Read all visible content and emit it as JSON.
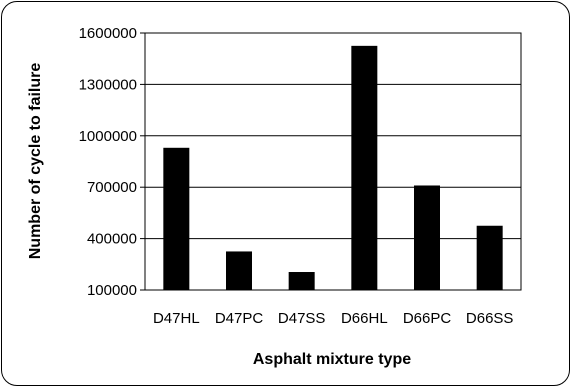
{
  "chart_data": {
    "type": "bar",
    "title": "",
    "xlabel": "Asphalt mixture type",
    "ylabel": "Number of cycle to failure",
    "categories": [
      "D47HL",
      "D47PC",
      "D47SS",
      "D66HL",
      "D66PC",
      "D66SS"
    ],
    "values": [
      930000,
      325000,
      205000,
      1525000,
      710000,
      475000
    ],
    "ylim": [
      100000,
      1600000
    ],
    "yticks": [
      100000,
      400000,
      700000,
      1000000,
      1300000,
      1600000
    ],
    "ytick_labels": [
      "100000",
      "400000",
      "700000",
      "1000000",
      "1300000",
      "1600000"
    ],
    "grid": true,
    "legend": "none",
    "bar_color": "#000000"
  }
}
